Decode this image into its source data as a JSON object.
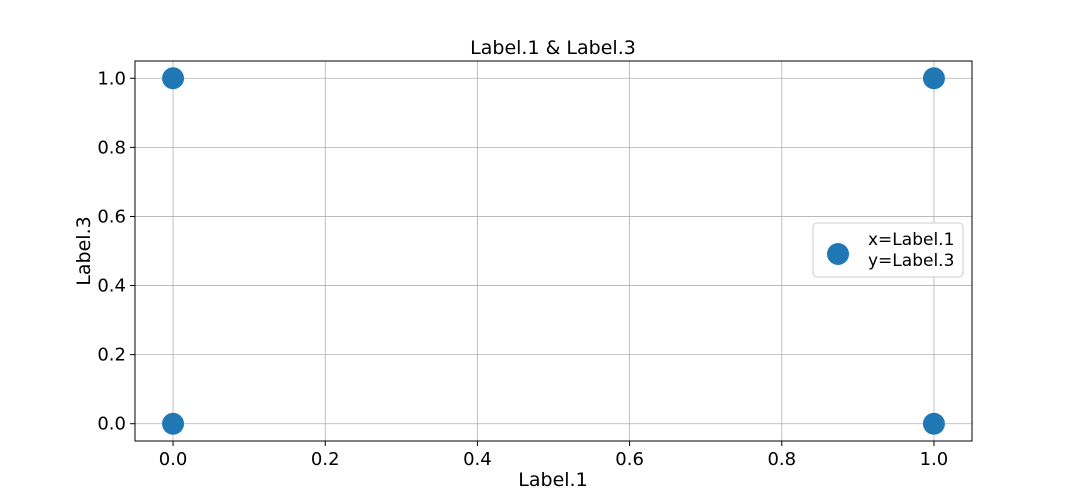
{
  "chart_data": {
    "type": "scatter",
    "title": "Label.1 & Label.3",
    "xlabel": "Label.1",
    "ylabel": "Label.3",
    "xlim": [
      -0.05,
      1.05
    ],
    "ylim": [
      -0.05,
      1.05
    ],
    "xticks": [
      "0.0",
      "0.2",
      "0.4",
      "0.6",
      "0.8",
      "1.0"
    ],
    "yticks": [
      "0.0",
      "0.2",
      "0.4",
      "0.6",
      "0.8",
      "1.0"
    ],
    "grid": true,
    "legend_position": "center-right",
    "series": [
      {
        "name": "x=Label.1\ny=Label.3",
        "legend_lines": [
          "x=Label.1",
          "y=Label.3"
        ],
        "color": "#1f77b4",
        "points": [
          [
            0,
            1
          ],
          [
            0,
            0
          ],
          [
            1,
            1
          ],
          [
            1,
            0
          ]
        ]
      }
    ]
  }
}
